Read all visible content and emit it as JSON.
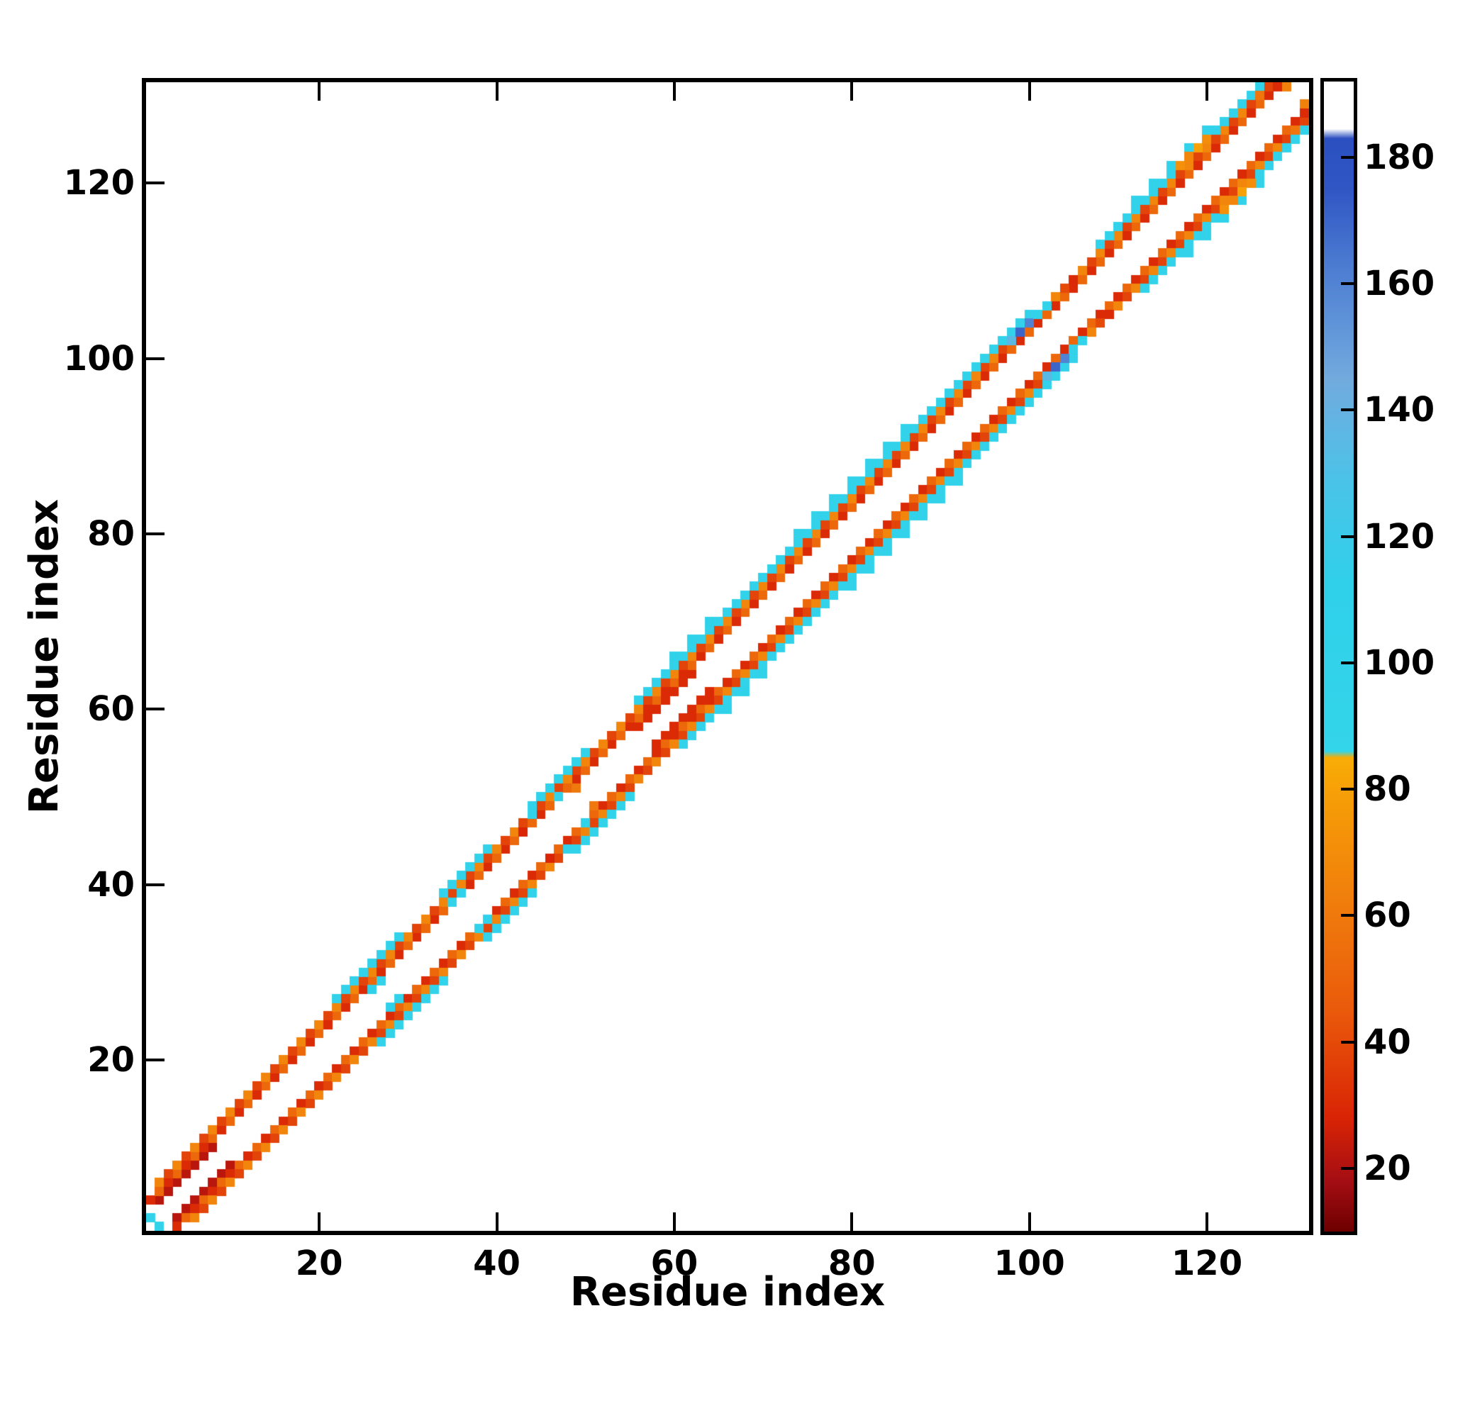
{
  "figure": {
    "background": "#ffffff",
    "frame_color": "#000000"
  },
  "chart_data": {
    "type": "heatmap",
    "title": "",
    "xlabel": "Residue index",
    "ylabel": "Residue index",
    "n_residues": 131,
    "axis_min": 0.5,
    "axis_max": 131.5,
    "x_ticks": [
      20,
      40,
      60,
      80,
      100,
      120
    ],
    "y_ticks": [
      20,
      40,
      60,
      80,
      100,
      120
    ],
    "grid": false,
    "symmetric": true,
    "empty_color": "#ffffff",
    "colorbar": {
      "vmin": 10,
      "vmax": 192,
      "ticks": [
        20,
        40,
        60,
        80,
        100,
        120,
        140,
        160,
        180
      ],
      "colormap": [
        {
          "t": 10,
          "color": "#6e0000"
        },
        {
          "t": 18,
          "color": "#a40e13"
        },
        {
          "t": 28,
          "color": "#d92405"
        },
        {
          "t": 45,
          "color": "#ea5a0b"
        },
        {
          "t": 62,
          "color": "#f07d0c"
        },
        {
          "t": 78,
          "color": "#f69c07"
        },
        {
          "t": 85,
          "color": "#f8ad06"
        },
        {
          "t": 86,
          "color": "#33d5ea"
        },
        {
          "t": 112,
          "color": "#2fd0ea"
        },
        {
          "t": 128,
          "color": "#49c4e9"
        },
        {
          "t": 145,
          "color": "#72aade"
        },
        {
          "t": 162,
          "color": "#4d7ed2"
        },
        {
          "t": 175,
          "color": "#3056c4"
        },
        {
          "t": 183,
          "color": "#2b4fc0"
        },
        {
          "t": 184.5,
          "color": "#ffffff"
        },
        {
          "t": 192,
          "color": "#ffffff"
        }
      ]
    },
    "band_segments": [
      {
        "o": 2,
        "a": 2,
        "b": 8,
        "v": 22
      },
      {
        "o": 2,
        "a": 56,
        "b": 62,
        "v": 30
      },
      {
        "o": 3,
        "a": 1,
        "b": 128,
        "v": 30,
        "v2": 52
      },
      {
        "o": 4,
        "a": 2,
        "b": 127,
        "v": 66,
        "v2": 38
      },
      {
        "o": 5,
        "a": 22,
        "b": 29,
        "v": 100
      },
      {
        "o": 5,
        "a": 34,
        "b": 39,
        "v": 102
      },
      {
        "o": 5,
        "a": 44,
        "b": 50,
        "v": 98
      },
      {
        "o": 5,
        "a": 56,
        "b": 100,
        "v": 100
      },
      {
        "o": 5,
        "a": 108,
        "b": 127,
        "v": 100
      },
      {
        "o": 6,
        "a": 60,
        "b": 64,
        "v": 104,
        "step": 2
      },
      {
        "o": 6,
        "a": 74,
        "b": 86,
        "v": 100,
        "step": 2
      },
      {
        "o": 6,
        "a": 112,
        "b": 120,
        "v": 102,
        "step": 2
      }
    ],
    "extra_cells": [
      {
        "i": 1,
        "j": 2,
        "v": 100
      },
      {
        "i": 26,
        "j": 28,
        "v": 110
      },
      {
        "i": 27,
        "j": 29,
        "v": 95
      },
      {
        "i": 35,
        "j": 38,
        "v": 100
      },
      {
        "i": 36,
        "j": 39,
        "v": 105
      },
      {
        "i": 43,
        "j": 46,
        "v": 28
      },
      {
        "i": 44,
        "j": 48,
        "v": 100
      },
      {
        "i": 47,
        "j": 50,
        "v": 95
      },
      {
        "i": 49,
        "j": 51,
        "v": 60
      },
      {
        "i": 98,
        "j": 102,
        "v": 135
      },
      {
        "i": 99,
        "j": 103,
        "v": 170
      },
      {
        "i": 100,
        "j": 104,
        "v": 160
      },
      {
        "i": 101,
        "j": 105,
        "v": 100
      },
      {
        "i": 102,
        "j": 106,
        "v": 98
      },
      {
        "i": 103,
        "j": 107,
        "v": 66
      },
      {
        "i": 104,
        "j": 108,
        "v": 40
      },
      {
        "i": 105,
        "j": 109,
        "v": 30
      },
      {
        "i": 113,
        "j": 118,
        "v": 100
      },
      {
        "i": 117,
        "j": 122,
        "v": 72
      },
      {
        "i": 118,
        "j": 123,
        "v": 66
      },
      {
        "i": 119,
        "j": 124,
        "v": 80
      },
      {
        "i": 120,
        "j": 125,
        "v": 70
      },
      {
        "i": 126,
        "j": 130,
        "v": 58
      },
      {
        "i": 128,
        "j": 131,
        "v": 30
      },
      {
        "i": 129,
        "j": 131,
        "v": 64
      }
    ]
  }
}
